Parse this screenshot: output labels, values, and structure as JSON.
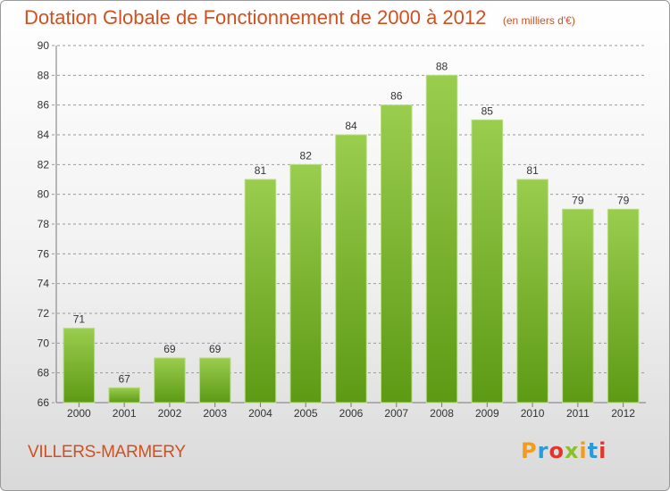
{
  "header": {
    "title": "Dotation Globale de Fonctionnement de 2000 à 2012",
    "unit": "(en milliers d'€)"
  },
  "footer": {
    "commune": "VILLERS-MARMERY",
    "logo": "Proxiti"
  },
  "colors": {
    "title": "#d05020",
    "bar_top": "#9acd4e",
    "bar_bottom": "#5d9a14",
    "grid": "#9a9a9a",
    "axis_text": "#333333"
  },
  "chart_data": {
    "type": "bar",
    "title": "Dotation Globale de Fonctionnement de 2000 à 2012",
    "subtitle": "(en milliers d'€)",
    "xlabel": "",
    "ylabel": "",
    "categories": [
      "2000",
      "2001",
      "2002",
      "2003",
      "2004",
      "2005",
      "2006",
      "2007",
      "2008",
      "2009",
      "2010",
      "2011",
      "2012"
    ],
    "values": [
      71,
      67,
      69,
      69,
      81,
      82,
      84,
      86,
      88,
      85,
      81,
      79,
      79
    ],
    "ylim": [
      66,
      90
    ],
    "yticks": [
      66,
      68,
      70,
      72,
      74,
      76,
      78,
      80,
      82,
      84,
      86,
      88,
      90
    ],
    "grid": true,
    "grid_style": "dashed horizontal",
    "data_labels": true
  }
}
